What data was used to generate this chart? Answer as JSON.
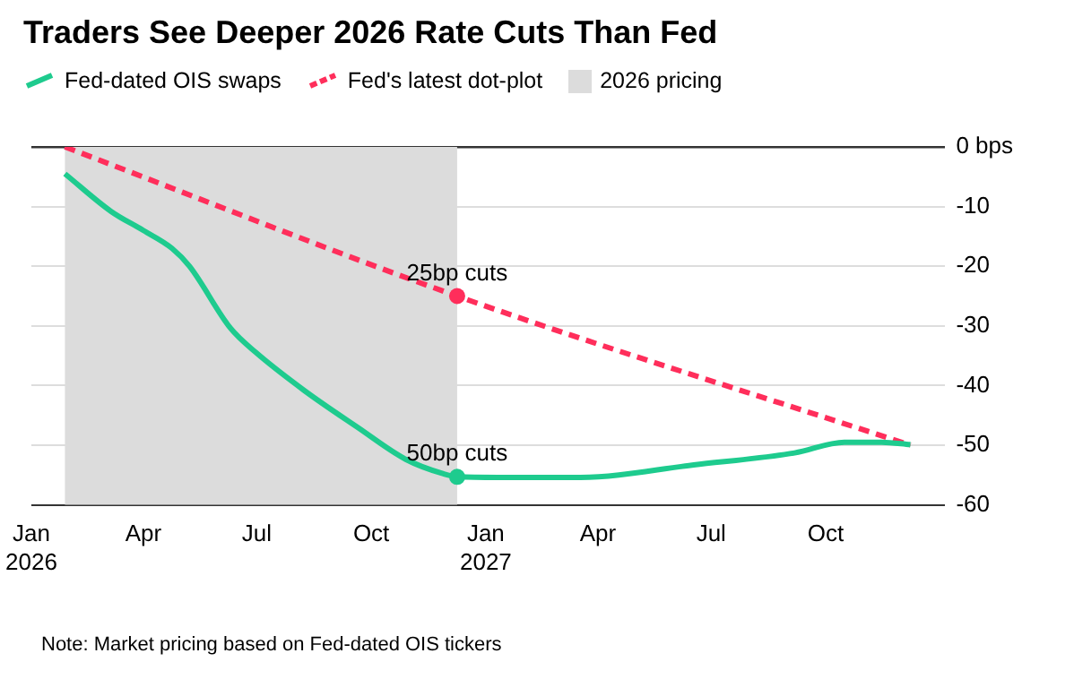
{
  "chart_data": {
    "type": "line",
    "title": "Traders See Deeper 2026 Rate Cuts Than Fed",
    "legend": "top left",
    "grid": "y",
    "xlim": [
      "2026-01-01",
      "2028-01-05"
    ],
    "ylim": [
      -60,
      0
    ],
    "xticks": [
      {
        "value": "2026-01-01",
        "label": "Jan 2026"
      },
      {
        "value": "2026-04-01",
        "label": "Apr"
      },
      {
        "value": "2026-07-01",
        "label": "Jul"
      },
      {
        "value": "2026-10-01",
        "label": "Oct"
      },
      {
        "value": "2027-01-01",
        "label": "Jan 2027"
      },
      {
        "value": "2027-04-01",
        "label": "Apr"
      },
      {
        "value": "2027-07-01",
        "label": "Jul"
      },
      {
        "value": "2027-10-01",
        "label": "Oct"
      }
    ],
    "yticks": [
      {
        "value": 0,
        "label": "0 bps"
      },
      -10,
      -20,
      -30,
      -40,
      -50,
      -60
    ],
    "series": [
      {
        "name": "Fed-dated OIS swaps",
        "color": "#1ecb8e",
        "line_style": "solid",
        "x": [
          "2026-01-28",
          "2026-03-06",
          "2026-04-01",
          "2026-04-24",
          "2026-05-08",
          "2026-06-10",
          "2026-06-30",
          "2026-08-08",
          "2026-09-20",
          "2026-10-29",
          "2026-11-28",
          "2026-12-09",
          "2027-01-11",
          "2027-03-18",
          "2027-06-17",
          "2027-09-06",
          "2027-10-16",
          "2027-11-15",
          "2027-12-08"
        ],
        "values": [
          -4.5,
          -10.8,
          -14,
          -17,
          -20,
          -30.4,
          -34.4,
          -40.8,
          -47,
          -52.4,
          -54.8,
          -55.3,
          -55.4,
          -55.4,
          -53.3,
          -51.3,
          -49.5,
          -49.5,
          -49.9
        ]
      },
      {
        "name": "Fed's latest dot-plot",
        "color": "#ff2e5b",
        "line_style": "dashed",
        "x": [
          "2026-01-28",
          "2026-12-09",
          "2027-12-08"
        ],
        "values": [
          0,
          -25,
          -50
        ]
      }
    ],
    "bands": [
      {
        "axis": "x",
        "from": "2026-01-28",
        "to": "2026-12-09",
        "label": "2026 pricing",
        "color": "#dcdcdc"
      }
    ],
    "annotations": [
      {
        "text": "25bp cuts",
        "x": "2026-12-09",
        "y": -25
      },
      {
        "text": "50bp cuts",
        "x": "2026-12-09",
        "y": -55.3
      },
      "Note: Market pricing based on Fed-dated OIS tickers"
    ]
  }
}
